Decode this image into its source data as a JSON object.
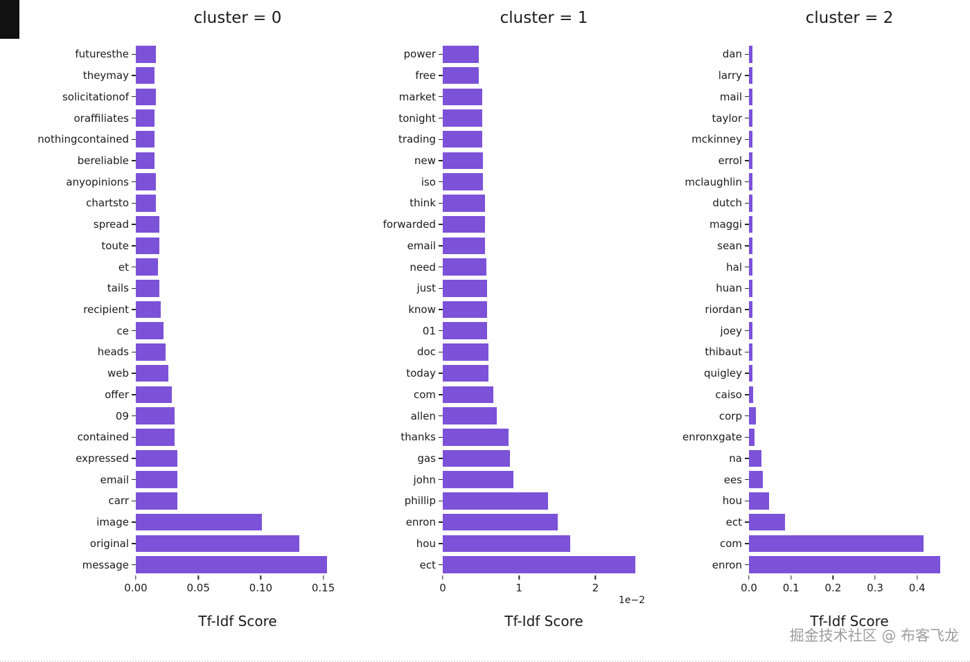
{
  "style": {
    "bar_color": "#7c52d8",
    "background": "#ffffff",
    "tick_color": "#262626"
  },
  "watermark": {
    "text": "掘金技术社区 @ 布客飞龙"
  },
  "chart_data": [
    {
      "type": "bar",
      "orientation": "horizontal",
      "title": "cluster = 0",
      "xlabel": "Tf-Idf Score",
      "ylabel": "",
      "grid": false,
      "legend": false,
      "xlim": [
        0,
        0.163
      ],
      "xticks": [
        "0.00",
        "0.05",
        "0.10",
        "0.15"
      ],
      "xtick_values": [
        0,
        0.05,
        0.1,
        0.15
      ],
      "xmax": 0.163,
      "categories": [
        "futuresthe",
        "theymay",
        "solicitationof",
        "oraffiliates",
        "nothingcontained",
        "bereliable",
        "anyopinions",
        "chartsto",
        "spread",
        "toute",
        "et",
        "tails",
        "recipient",
        "ce",
        "heads",
        "web",
        "offer",
        "09",
        "contained",
        "expressed",
        "email",
        "carr",
        "image",
        "original",
        "message"
      ],
      "values": [
        0.016,
        0.015,
        0.016,
        0.015,
        0.015,
        0.015,
        0.016,
        0.016,
        0.019,
        0.019,
        0.018,
        0.019,
        0.02,
        0.022,
        0.024,
        0.026,
        0.029,
        0.031,
        0.031,
        0.033,
        0.033,
        0.033,
        0.101,
        0.131,
        0.153
      ]
    },
    {
      "type": "bar",
      "orientation": "horizontal",
      "title": "cluster = 1",
      "xlabel": "Tf-Idf Score",
      "ylabel": "",
      "grid": false,
      "legend": false,
      "x_unit": "1e-2",
      "offset_text": "1e−2",
      "xlim": [
        0,
        2.65
      ],
      "xticks": [
        "0",
        "1",
        "2"
      ],
      "xtick_values": [
        0,
        1,
        2
      ],
      "xmax": 2.65,
      "categories": [
        "power",
        "free",
        "market",
        "tonight",
        "trading",
        "new",
        "iso",
        "think",
        "forwarded",
        "email",
        "need",
        "just",
        "know",
        "01",
        "doc",
        "today",
        "com",
        "allen",
        "thanks",
        "gas",
        "john",
        "phillip",
        "enron",
        "hou",
        "ect"
      ],
      "values": [
        0.47,
        0.47,
        0.52,
        0.52,
        0.52,
        0.53,
        0.53,
        0.55,
        0.55,
        0.55,
        0.57,
        0.58,
        0.58,
        0.58,
        0.6,
        0.6,
        0.66,
        0.71,
        0.86,
        0.88,
        0.93,
        1.38,
        1.51,
        1.67,
        2.52
      ]
    },
    {
      "type": "bar",
      "orientation": "horizontal",
      "title": "cluster = 2",
      "xlabel": "Tf-Idf Score",
      "ylabel": "",
      "grid": false,
      "legend": false,
      "xlim": [
        0,
        0.478
      ],
      "xticks": [
        "0.0",
        "0.1",
        "0.2",
        "0.3",
        "0.4"
      ],
      "xtick_values": [
        0,
        0.1,
        0.2,
        0.3,
        0.4
      ],
      "xmax": 0.478,
      "categories": [
        "dan",
        "larry",
        "mail",
        "taylor",
        "mckinney",
        "errol",
        "mclaughlin",
        "dutch",
        "maggi",
        "sean",
        "hal",
        "huan",
        "riordan",
        "joey",
        "thibaut",
        "quigley",
        "caiso",
        "corp",
        "enronxgate",
        "na",
        "ees",
        "hou",
        "ect",
        "com",
        "enron"
      ],
      "values": [
        0.008,
        0.008,
        0.008,
        0.008,
        0.008,
        0.008,
        0.008,
        0.008,
        0.009,
        0.009,
        0.009,
        0.009,
        0.009,
        0.009,
        0.009,
        0.009,
        0.01,
        0.016,
        0.013,
        0.03,
        0.033,
        0.047,
        0.085,
        0.415,
        0.455
      ]
    }
  ]
}
